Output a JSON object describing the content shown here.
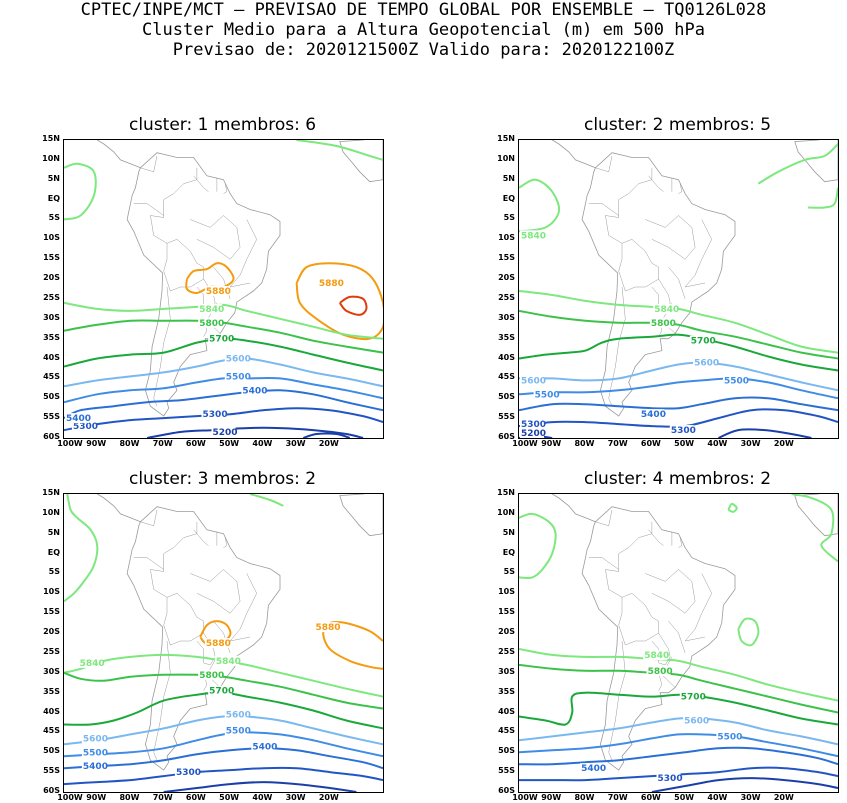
{
  "header": {
    "line1": "CPTEC/INPE/MCT — PREVISAO DE TEMPO GLOBAL POR ENSEMBLE — TQ0126L028",
    "line2": "Cluster Medio para a Altura Geopotencial (m) em 500 hPa",
    "line3": "Previsao de: 2020121500Z    Valido para: 2020122100Z"
  },
  "lat_labels": [
    "15N",
    "10N",
    "5N",
    "EQ",
    "5S",
    "10S",
    "15S",
    "20S",
    "25S",
    "30S",
    "35S",
    "40S",
    "45S",
    "50S",
    "55S",
    "60S"
  ],
  "lon_labels": [
    "100W",
    "90W",
    "80W",
    "70W",
    "60W",
    "50W",
    "40W",
    "30W",
    "20W"
  ],
  "colors": {
    "c5200": "#1a3fa8",
    "c5300": "#2255c4",
    "c5400": "#2a6fd6",
    "c5500": "#3f8ce6",
    "c5600": "#7ab8f0",
    "c5700": "#1aa83a",
    "c5800": "#3cc24a",
    "c5840": "#7de87d",
    "c5880": "#f49b0f",
    "c5920": "#e03a0f",
    "coast": "#9a9a9a"
  },
  "panels": [
    {
      "title": "cluster: 1   membros: 6",
      "labels": [
        {
          "text": "5880",
          "lon": -20,
          "lat": -21,
          "level": "5880"
        },
        {
          "text": "5880",
          "lon": -54,
          "lat": -23,
          "level": "5880"
        },
        {
          "text": "5840",
          "lon": -56,
          "lat": -27.5,
          "level": "5840"
        },
        {
          "text": "5800",
          "lon": -56,
          "lat": -31,
          "level": "5800"
        },
        {
          "text": "5700",
          "lon": -53,
          "lat": -35,
          "level": "5700"
        },
        {
          "text": "5600",
          "lon": -48,
          "lat": -40,
          "level": "5600"
        },
        {
          "text": "5500",
          "lon": -48,
          "lat": -44.5,
          "level": "5500"
        },
        {
          "text": "5400",
          "lon": -43,
          "lat": -48,
          "level": "5400"
        },
        {
          "text": "5300",
          "lon": -55,
          "lat": -54,
          "level": "5300"
        },
        {
          "text": "5300",
          "lon": -94,
          "lat": -57,
          "level": "5300"
        },
        {
          "text": "5200",
          "lon": -52,
          "lat": -58.5,
          "level": "5200"
        },
        {
          "text": "5400",
          "lon": -99,
          "lat": -55,
          "level": "5400"
        }
      ]
    },
    {
      "title": "cluster: 2   membros: 5",
      "labels": [
        {
          "text": "5840",
          "lon": -97,
          "lat": -9,
          "level": "5840"
        },
        {
          "text": "5840",
          "lon": -56,
          "lat": -27.5,
          "level": "5840"
        },
        {
          "text": "5800",
          "lon": -57,
          "lat": -31,
          "level": "5800"
        },
        {
          "text": "5700",
          "lon": -45,
          "lat": -35.5,
          "level": "5700"
        },
        {
          "text": "5600",
          "lon": -44,
          "lat": -41,
          "level": "5600"
        },
        {
          "text": "5600",
          "lon": -97,
          "lat": -45.5,
          "level": "5600"
        },
        {
          "text": "5500",
          "lon": -35,
          "lat": -45.5,
          "level": "5500"
        },
        {
          "text": "5500",
          "lon": -92,
          "lat": -49,
          "level": "5500"
        },
        {
          "text": "5400",
          "lon": -60,
          "lat": -54,
          "level": "5400"
        },
        {
          "text": "5300",
          "lon": -97,
          "lat": -56.5,
          "level": "5300"
        },
        {
          "text": "5300",
          "lon": -51,
          "lat": -58,
          "level": "5300"
        },
        {
          "text": "5200",
          "lon": -97,
          "lat": -59.5,
          "level": "5200"
        }
      ]
    },
    {
      "title": "cluster: 3   membros: 2",
      "labels": [
        {
          "text": "5880",
          "lon": -21,
          "lat": -18.5,
          "level": "5880"
        },
        {
          "text": "5880",
          "lon": -54,
          "lat": -22.5,
          "level": "5880"
        },
        {
          "text": "5840",
          "lon": -92,
          "lat": -27.5,
          "level": "5840"
        },
        {
          "text": "5840",
          "lon": -51,
          "lat": -27,
          "level": "5840"
        },
        {
          "text": "5800",
          "lon": -56,
          "lat": -30.5,
          "level": "5800"
        },
        {
          "text": "5700",
          "lon": -53,
          "lat": -34.5,
          "level": "5700"
        },
        {
          "text": "5600",
          "lon": -48,
          "lat": -40.5,
          "level": "5600"
        },
        {
          "text": "5600",
          "lon": -91,
          "lat": -46.5,
          "level": "5600"
        },
        {
          "text": "5500",
          "lon": -48,
          "lat": -44.5,
          "level": "5500"
        },
        {
          "text": "5500",
          "lon": -91,
          "lat": -50,
          "level": "5500"
        },
        {
          "text": "5400",
          "lon": -40,
          "lat": -48.5,
          "level": "5400"
        },
        {
          "text": "5400",
          "lon": -91,
          "lat": -53.5,
          "level": "5400"
        },
        {
          "text": "5300",
          "lon": -63,
          "lat": -55,
          "level": "5300"
        }
      ]
    },
    {
      "title": "cluster: 4   membros: 2",
      "labels": [
        {
          "text": "5840",
          "lon": -59,
          "lat": -25.5,
          "level": "5840"
        },
        {
          "text": "5800",
          "lon": -58,
          "lat": -29.5,
          "level": "5800"
        },
        {
          "text": "5700",
          "lon": -48,
          "lat": -36,
          "level": "5700"
        },
        {
          "text": "5600",
          "lon": -47,
          "lat": -42,
          "level": "5600"
        },
        {
          "text": "5500",
          "lon": -37,
          "lat": -46,
          "level": "5500"
        },
        {
          "text": "5400",
          "lon": -78,
          "lat": -54,
          "level": "5400"
        },
        {
          "text": "5300",
          "lon": -55,
          "lat": -56.5,
          "level": "5300"
        }
      ]
    }
  ]
}
